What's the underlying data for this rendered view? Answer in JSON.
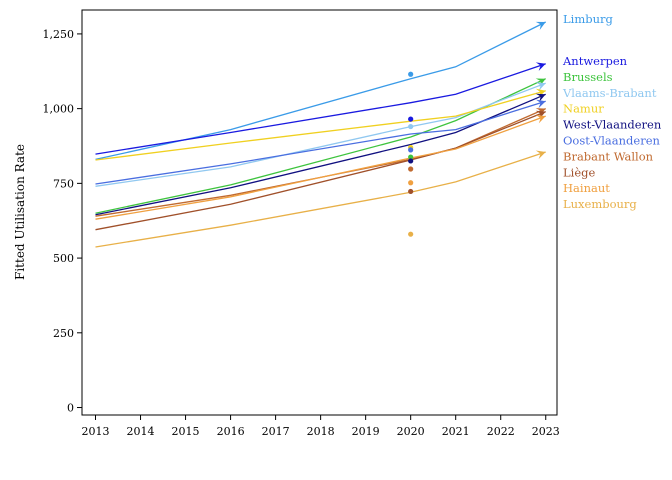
{
  "chart_data": {
    "type": "line",
    "title": "",
    "xlabel": "",
    "ylabel": "Fitted Utilisation Rate",
    "x": [
      2013,
      2014,
      2015,
      2016,
      2017,
      2018,
      2019,
      2020,
      2021,
      2022,
      2023
    ],
    "xlim": [
      2012.7,
      2023.25
    ],
    "ylim": [
      -25,
      1330
    ],
    "yticks": [
      0,
      250,
      500,
      750,
      1000,
      1250
    ],
    "ytick_labels": [
      "0",
      "250",
      "500",
      "750",
      "1,000",
      "1,250"
    ],
    "grid": false,
    "legend_position": "right, labels at line ends",
    "series": [
      {
        "name": "Limburg",
        "color": "#3a9be8",
        "line": [
          [
            2013,
            830
          ],
          [
            2016,
            930
          ],
          [
            2020,
            1100
          ],
          [
            2021,
            1140
          ],
          [
            2023,
            1290
          ]
        ],
        "observed_2020": 1115
      },
      {
        "name": "Antwerpen",
        "color": "#1a1ae0",
        "line": [
          [
            2013,
            848
          ],
          [
            2016,
            920
          ],
          [
            2020,
            1020
          ],
          [
            2021,
            1048
          ],
          [
            2023,
            1150
          ]
        ],
        "observed_2020": 965
      },
      {
        "name": "Brussels",
        "color": "#3ec43e",
        "line": [
          [
            2013,
            650
          ],
          [
            2016,
            745
          ],
          [
            2020,
            905
          ],
          [
            2021,
            960
          ],
          [
            2023,
            1100
          ]
        ],
        "observed_2020": 838
      },
      {
        "name": "Vlaams-Brabant",
        "color": "#90c8f0",
        "line": [
          [
            2013,
            740
          ],
          [
            2016,
            805
          ],
          [
            2020,
            940
          ],
          [
            2021,
            970
          ],
          [
            2023,
            1085
          ]
        ],
        "observed_2020": 940
      },
      {
        "name": "Namur",
        "color": "#f0d020",
        "line": [
          [
            2013,
            828
          ],
          [
            2016,
            885
          ],
          [
            2020,
            958
          ],
          [
            2021,
            975
          ],
          [
            2023,
            1060
          ]
        ],
        "observed_2020": 870
      },
      {
        "name": "West-Vlaanderen",
        "color": "#101080",
        "line": [
          [
            2013,
            645
          ],
          [
            2016,
            735
          ],
          [
            2020,
            880
          ],
          [
            2021,
            920
          ],
          [
            2023,
            1048
          ]
        ],
        "observed_2020": 825
      },
      {
        "name": "Oost-Vlaanderen",
        "color": "#4a6ee0",
        "line": [
          [
            2013,
            748
          ],
          [
            2016,
            815
          ],
          [
            2020,
            915
          ],
          [
            2021,
            930
          ],
          [
            2023,
            1025
          ]
        ],
        "observed_2020": 862
      },
      {
        "name": "Brabant Wallon",
        "color": "#c06a30",
        "line": [
          [
            2013,
            640
          ],
          [
            2016,
            710
          ],
          [
            2020,
            830
          ],
          [
            2021,
            868
          ],
          [
            2023,
            1000
          ]
        ],
        "observed_2020": 798
      },
      {
        "name": "Liège",
        "color": "#a0502a",
        "line": [
          [
            2013,
            595
          ],
          [
            2016,
            680
          ],
          [
            2020,
            828
          ],
          [
            2021,
            868
          ],
          [
            2023,
            990
          ]
        ],
        "observed_2020": 723
      },
      {
        "name": "Hainaut",
        "color": "#f0a040",
        "line": [
          [
            2013,
            630
          ],
          [
            2016,
            705
          ],
          [
            2020,
            835
          ],
          [
            2021,
            865
          ],
          [
            2023,
            975
          ]
        ],
        "observed_2020": 752
      },
      {
        "name": "Luxembourg",
        "color": "#e8b048",
        "line": [
          [
            2013,
            537
          ],
          [
            2016,
            610
          ],
          [
            2020,
            720
          ],
          [
            2021,
            755
          ],
          [
            2023,
            855
          ]
        ],
        "observed_2020": 580
      }
    ]
  }
}
